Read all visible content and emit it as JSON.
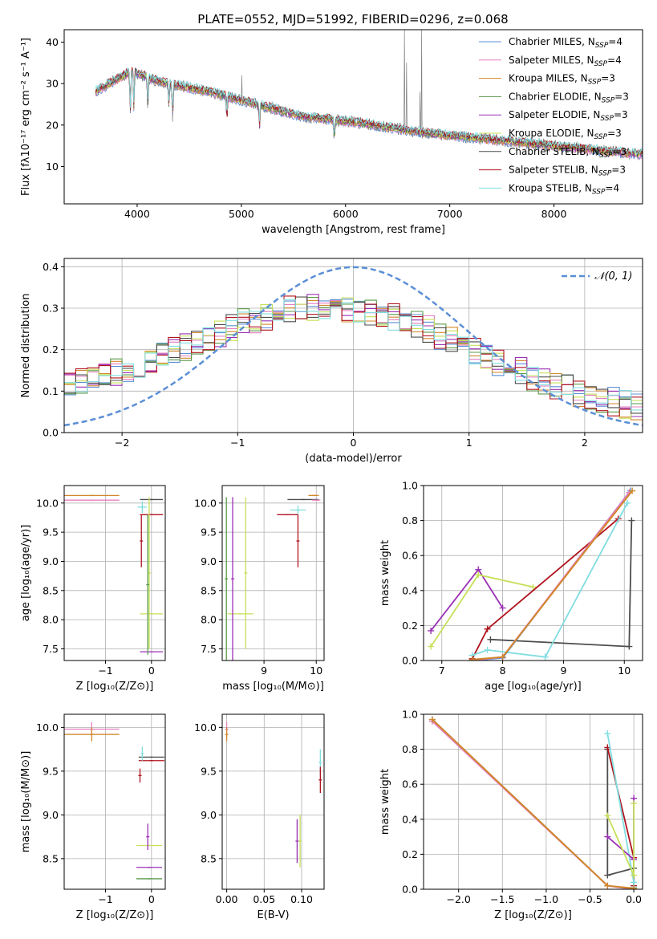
{
  "figure": {
    "title": "PLATE=0552, MJD=51992, FIBERID=0296, z=0.068"
  },
  "colors": {
    "Chabrier MILES": "#5b8fd6",
    "Salpeter MILES": "#e57fc0",
    "Kroupa MILES": "#d2872a",
    "Chabrier ELODIE": "#5a9a4a",
    "Salpeter ELODIE": "#9b30b5",
    "Kroupa ELODIE": "#c6e05a",
    "Chabrier STELIB": "#4d4d4d",
    "Salpeter STELIB": "#b0141e",
    "Kroupa STELIB": "#80dde0",
    "normal": "#5b8fd6",
    "observed": "#808080"
  },
  "chart_data": [
    {
      "id": "spectrum",
      "type": "line",
      "xlabel": "wavelength [Angstrom, rest frame]",
      "ylabel": "Flux [fλ10⁻¹⁷ erg cm⁻² s⁻¹ A⁻¹]",
      "xlim": [
        3300,
        8850
      ],
      "ylim": [
        1,
        43
      ],
      "xticks": [
        "4000",
        "5000",
        "6000",
        "7000",
        "8000"
      ],
      "xtick_values": [
        4000,
        5000,
        6000,
        7000,
        8000
      ],
      "yticks": [
        "10",
        "20",
        "30",
        "40"
      ],
      "ytick_values": [
        10,
        20,
        30,
        40
      ],
      "grid": false,
      "legend": "top-right",
      "continuum": {
        "x": [
          3600,
          3800,
          3950,
          4150,
          4400,
          4700,
          5000,
          5300,
          5600,
          6000,
          6400,
          6800,
          7200,
          7600,
          8000,
          8400,
          8800
        ],
        "y": [
          28,
          31,
          33,
          31,
          29.5,
          28,
          26,
          24,
          22,
          21,
          19.5,
          18,
          17,
          16,
          15,
          14,
          13
        ]
      },
      "absorption_lines": [
        {
          "x": 3934,
          "depth": 10
        },
        {
          "x": 3969,
          "depth": 9
        },
        {
          "x": 4102,
          "depth": 7
        },
        {
          "x": 4305,
          "depth": 5
        },
        {
          "x": 4341,
          "depth": 8
        },
        {
          "x": 4861,
          "depth": 6
        },
        {
          "x": 5175,
          "depth": 5
        },
        {
          "x": 5892,
          "depth": 5
        }
      ],
      "emission_lines": [
        {
          "x": 4861,
          "peak": 27
        },
        {
          "x": 5007,
          "peak": 32
        },
        {
          "x": 6563,
          "peak": 43
        },
        {
          "x": 6583,
          "peak": 35
        },
        {
          "x": 6717,
          "peak": 28
        },
        {
          "x": 6731,
          "peak": 43
        }
      ],
      "series": [
        {
          "name": "Chabrier MILES, N$_{SSP}$=4",
          "label": "Chabrier MILES, N",
          "sub": "SSP",
          "tail": "=4"
        },
        {
          "name": "Salpeter MILES, N$_{SSP}$=4",
          "label": "Salpeter MILES, N",
          "sub": "SSP",
          "tail": "=4"
        },
        {
          "name": "Kroupa MILES, N$_{SSP}$=3",
          "label": "Kroupa MILES, N",
          "sub": "SSP",
          "tail": "=3"
        },
        {
          "name": "Chabrier ELODIE, N$_{SSP}$=3",
          "label": "Chabrier ELODIE, N",
          "sub": "SSP",
          "tail": "=3"
        },
        {
          "name": "Salpeter ELODIE, N$_{SSP}$=3",
          "label": "Salpeter ELODIE, N",
          "sub": "SSP",
          "tail": "=3"
        },
        {
          "name": "Kroupa ELODIE, N$_{SSP}$=3",
          "label": "Kroupa ELODIE, N",
          "sub": "SSP",
          "tail": "=3"
        },
        {
          "name": "Chabrier STELIB, N$_{SSP}$=3",
          "label": "Chabrier STELIB, N",
          "sub": "SSP",
          "tail": "=3"
        },
        {
          "name": "Salpeter STELIB, N$_{SSP}$=3",
          "label": "Salpeter STELIB, N",
          "sub": "SSP",
          "tail": "=3"
        },
        {
          "name": "Kroupa STELIB, N$_{SSP}$=4",
          "label": "Kroupa STELIB, N",
          "sub": "SSP",
          "tail": "=4"
        }
      ]
    },
    {
      "id": "residuals",
      "type": "line",
      "xlabel": "(data-model)/error",
      "ylabel": "Normed distribution",
      "xlim": [
        -2.5,
        2.5
      ],
      "ylim": [
        0,
        0.42
      ],
      "xticks": [
        "−2",
        "−1",
        "0",
        "1",
        "2"
      ],
      "xtick_values": [
        -2,
        -1,
        0,
        1,
        2
      ],
      "yticks": [
        "0.0",
        "0.1",
        "0.2",
        "0.3",
        "0.4"
      ],
      "ytick_values": [
        0,
        0.1,
        0.2,
        0.3,
        0.4
      ],
      "grid": true,
      "legend": "top-right",
      "normal_label": "𝒩(0, 1)",
      "hist_shape": {
        "x": [
          -2.5,
          -2.0,
          -1.5,
          -1.0,
          -0.5,
          0.0,
          0.5,
          1.0,
          1.5,
          2.0,
          2.5
        ],
        "y": [
          0.11,
          0.15,
          0.2,
          0.26,
          0.3,
          0.3,
          0.27,
          0.2,
          0.14,
          0.09,
          0.06
        ]
      }
    },
    {
      "id": "z-age",
      "type": "scatter",
      "xlabel": "Z [log₁₀(Z/Z⊙)]",
      "ylabel": "age  [log₁₀(age/yr)]",
      "xlim": [
        -1.9,
        0.3
      ],
      "ylim": [
        7.3,
        10.3
      ],
      "xticks": [
        "−1",
        "0"
      ],
      "xtick_values": [
        -1,
        0
      ],
      "yticks": [
        "7.5",
        "8.0",
        "8.5",
        "9.0",
        "9.5",
        "10.0"
      ],
      "ytick_values": [
        7.5,
        8,
        8.5,
        9,
        9.5,
        10
      ],
      "grid": true,
      "points": [
        {
          "series": "Salpeter MILES",
          "x": -1.3,
          "y": 10.05,
          "xerr": 0.6,
          "yerr": 0
        },
        {
          "series": "Kroupa MILES",
          "x": -1.3,
          "y": 10.13,
          "xerr": 0.6,
          "yerr": 0
        },
        {
          "series": "Chabrier STELIB",
          "x": 0.0,
          "y": 10.06,
          "xerr": 0.25,
          "yerr": 0
        },
        {
          "series": "Kroupa STELIB",
          "x": -0.2,
          "y": 9.93,
          "xerr": 0.1,
          "yerr": 0.1
        },
        {
          "series": "Salpeter STELIB",
          "x": 0.0,
          "y": 9.8,
          "xerr": 0.25,
          "yerr": 0
        },
        {
          "series": "Salpeter STELIB",
          "x": -0.22,
          "y": 9.35,
          "xerr": 0,
          "yerr": 0.45
        },
        {
          "series": "Kroupa ELODIE",
          "x": 0.0,
          "y": 8.1,
          "xerr": 0.25,
          "yerr": 0
        },
        {
          "series": "Kroupa ELODIE",
          "x": -0.05,
          "y": 8.8,
          "xerr": 0,
          "yerr": 1.3
        },
        {
          "series": "Salpeter ELODIE",
          "x": 0.0,
          "y": 7.45,
          "xerr": 0.25,
          "yerr": 0
        },
        {
          "series": "Chabrier ELODIE",
          "x": -0.08,
          "y": 8.6,
          "xerr": 0,
          "yerr": 1.2
        }
      ]
    },
    {
      "id": "mass-age",
      "type": "scatter",
      "xlabel": "mass [log₁₀(M/M⊙)]",
      "ylabel": "",
      "xlim": [
        8.2,
        10.15
      ],
      "ylim": [
        7.3,
        10.3
      ],
      "xticks": [
        "9",
        "10"
      ],
      "xtick_values": [
        9,
        10
      ],
      "yticks": [
        "7.5",
        "8.0",
        "8.5",
        "9.0",
        "9.5",
        "10.0"
      ],
      "ytick_values": [
        7.5,
        8,
        8.5,
        9,
        9.5,
        10
      ],
      "grid": true,
      "points": [
        {
          "series": "Chabrier STELIB",
          "x": 9.75,
          "y": 10.06,
          "xerr": 0.3,
          "yerr": 0
        },
        {
          "series": "Kroupa MILES",
          "x": 9.95,
          "y": 10.13,
          "xerr": 0.1,
          "yerr": 0
        },
        {
          "series": "Salpeter MILES",
          "x": 10.0,
          "y": 10.05,
          "xerr": 0.08,
          "yerr": 0
        },
        {
          "series": "Kroupa STELIB",
          "x": 9.65,
          "y": 9.88,
          "xerr": 0.15,
          "yerr": 0.08
        },
        {
          "series": "Salpeter STELIB",
          "x": 9.45,
          "y": 9.8,
          "xerr": 0.2,
          "yerr": 0
        },
        {
          "series": "Salpeter STELIB",
          "x": 9.65,
          "y": 9.35,
          "xerr": 0,
          "yerr": 0.45
        },
        {
          "series": "Kroupa ELODIE",
          "x": 8.55,
          "y": 8.1,
          "xerr": 0.25,
          "yerr": 0
        },
        {
          "series": "Kroupa ELODIE",
          "x": 8.65,
          "y": 8.8,
          "xerr": 0,
          "yerr": 1.3
        },
        {
          "series": "Salpeter ELODIE",
          "x": 8.4,
          "y": 8.7,
          "xerr": 0,
          "yerr": 1.4
        },
        {
          "series": "Chabrier ELODIE",
          "x": 8.28,
          "y": 8.7,
          "xerr": 0,
          "yerr": 1.4
        }
      ]
    },
    {
      "id": "age-weight",
      "type": "line",
      "xlabel": "age  [log₁₀(age/yr)]",
      "ylabel": "mass weight",
      "xlim": [
        6.7,
        10.3
      ],
      "ylim": [
        0,
        1
      ],
      "xticks": [
        "7",
        "8",
        "9",
        "10"
      ],
      "xtick_values": [
        7,
        8,
        9,
        10
      ],
      "yticks": [
        "0.0",
        "0.2",
        "0.4",
        "0.6",
        "0.8",
        "1.0"
      ],
      "ytick_values": [
        0,
        0.2,
        0.4,
        0.6,
        0.8,
        1
      ],
      "grid": true,
      "series": [
        {
          "series": "Salpeter ELODIE",
          "x": [
            6.82,
            7.6,
            8.0
          ],
          "y": [
            0.17,
            0.52,
            0.3
          ]
        },
        {
          "series": "Kroupa ELODIE",
          "x": [
            6.82,
            7.6,
            8.5
          ],
          "y": [
            0.08,
            0.49,
            0.42
          ]
        },
        {
          "series": "Salpeter STELIB",
          "x": [
            7.5,
            7.75,
            9.9
          ],
          "y": [
            0.01,
            0.18,
            0.81
          ]
        },
        {
          "series": "Chabrier STELIB",
          "x": [
            7.8,
            10.08,
            10.12
          ],
          "y": [
            0.12,
            0.08,
            0.8
          ]
        },
        {
          "series": "Kroupa STELIB",
          "x": [
            7.5,
            7.75,
            8.7,
            10.05
          ],
          "y": [
            0.03,
            0.06,
            0.02,
            0.9
          ]
        },
        {
          "series": "Chabrier MILES",
          "x": [
            7.5,
            8.0,
            10.1
          ],
          "y": [
            0.0,
            0.015,
            0.97
          ]
        },
        {
          "series": "Salpeter MILES",
          "x": [
            7.5,
            8.0,
            10.08
          ],
          "y": [
            0.0,
            0.02,
            0.96
          ]
        },
        {
          "series": "Kroupa MILES",
          "x": [
            7.5,
            8.0,
            10.13
          ],
          "y": [
            0.005,
            0.02,
            0.97
          ]
        }
      ]
    },
    {
      "id": "z-mass",
      "type": "scatter",
      "xlabel": "Z [log₁₀(Z/Z⊙)]",
      "ylabel": "mass [log₁₀(M/M⊙)]",
      "xlim": [
        -1.9,
        0.3
      ],
      "ylim": [
        8.15,
        10.15
      ],
      "xticks": [
        "−1",
        "0"
      ],
      "xtick_values": [
        -1,
        0
      ],
      "yticks": [
        "8.5",
        "9.0",
        "9.5",
        "10.0"
      ],
      "ytick_values": [
        8.5,
        9,
        9.5,
        10
      ],
      "grid": true,
      "points": [
        {
          "series": "Salpeter MILES",
          "x": -1.3,
          "y": 9.98,
          "xerr": 0.6,
          "yerr": 0.08
        },
        {
          "series": "Kroupa MILES",
          "x": -1.3,
          "y": 9.92,
          "xerr": 0.6,
          "yerr": 0.08
        },
        {
          "series": "Chabrier STELIB",
          "x": 0.0,
          "y": 9.66,
          "xerr": 0.28,
          "yerr": 0
        },
        {
          "series": "Salpeter STELIB",
          "x": 0.0,
          "y": 9.62,
          "xerr": 0.28,
          "yerr": 0
        },
        {
          "series": "Kroupa STELIB",
          "x": -0.2,
          "y": 9.7,
          "xerr": 0,
          "yerr": 0.08
        },
        {
          "series": "Salpeter STELIB",
          "x": -0.25,
          "y": 9.45,
          "xerr": 0,
          "yerr": 0.08
        },
        {
          "series": "Kroupa ELODIE",
          "x": -0.05,
          "y": 8.65,
          "xerr": 0.28,
          "yerr": 0
        },
        {
          "series": "Salpeter ELODIE",
          "x": -0.05,
          "y": 8.4,
          "xerr": 0.28,
          "yerr": 0
        },
        {
          "series": "Chabrier ELODIE",
          "x": -0.05,
          "y": 8.27,
          "xerr": 0.28,
          "yerr": 0
        },
        {
          "series": "Salpeter ELODIE",
          "x": -0.08,
          "y": 8.75,
          "xerr": 0,
          "yerr": 0.15
        }
      ]
    },
    {
      "id": "ebv-mass",
      "type": "scatter",
      "xlabel": "E(B-V)",
      "ylabel": "",
      "xlim": [
        -0.006,
        0.13
      ],
      "ylim": [
        8.15,
        10.15
      ],
      "xticks": [
        "0.00",
        "0.05",
        "0.10"
      ],
      "xtick_values": [
        0,
        0.05,
        0.1
      ],
      "yticks": [
        "8.5",
        "9.0",
        "9.5",
        "10.0"
      ],
      "ytick_values": [
        8.5,
        9,
        9.5,
        10
      ],
      "grid": true,
      "points": [
        {
          "series": "Salpeter MILES",
          "x": 0.0,
          "y": 9.98,
          "xerr": 0,
          "yerr": 0.08
        },
        {
          "series": "Kroupa MILES",
          "x": 0.0,
          "y": 9.92,
          "xerr": 0,
          "yerr": 0.08
        },
        {
          "series": "Kroupa STELIB",
          "x": 0.125,
          "y": 9.6,
          "xerr": 0,
          "yerr": 0.15
        },
        {
          "series": "Salpeter STELIB",
          "x": 0.125,
          "y": 9.4,
          "xerr": 0,
          "yerr": 0.15
        },
        {
          "series": "Salpeter ELODIE",
          "x": 0.094,
          "y": 8.7,
          "xerr": 0,
          "yerr": 0.25
        },
        {
          "series": "Kroupa ELODIE",
          "x": 0.098,
          "y": 8.7,
          "xerr": 0,
          "yerr": 0.3
        }
      ]
    },
    {
      "id": "z-weight",
      "type": "line",
      "xlabel": "Z [log₁₀(Z/Z⊙)]",
      "ylabel": "mass weight",
      "xlim": [
        -2.4,
        0.1
      ],
      "ylim": [
        0,
        1
      ],
      "xticks": [
        "−2.0",
        "−1.5",
        "−1.0",
        "−0.5",
        "0.0"
      ],
      "xtick_values": [
        -2,
        -1.5,
        -1,
        -0.5,
        0
      ],
      "yticks": [
        "0.0",
        "0.2",
        "0.4",
        "0.6",
        "0.8",
        "1.0"
      ],
      "ytick_values": [
        0,
        0.2,
        0.4,
        0.6,
        0.8,
        1
      ],
      "grid": true,
      "series": [
        {
          "series": "Chabrier STELIB",
          "x": [
            -0.3,
            -0.3,
            0.0,
            0.0
          ],
          "y": [
            0.8,
            0.08,
            0.12,
            0.0
          ]
        },
        {
          "series": "Salpeter STELIB",
          "x": [
            -0.3,
            0.0,
            0.0
          ],
          "y": [
            0.81,
            0.18,
            0.02
          ]
        },
        {
          "series": "Kroupa STELIB",
          "x": [
            -0.3,
            0.0,
            0.0
          ],
          "y": [
            0.89,
            0.04,
            0.01
          ]
        },
        {
          "series": "Salpeter ELODIE",
          "x": [
            -0.3,
            0.0,
            0.0
          ],
          "y": [
            0.3,
            0.17,
            0.52
          ]
        },
        {
          "series": "Kroupa ELODIE",
          "x": [
            -0.3,
            0.0,
            0.0
          ],
          "y": [
            0.42,
            0.08,
            0.49
          ]
        },
        {
          "series": "Chabrier MILES",
          "x": [
            -2.3,
            -0.3,
            0.0
          ],
          "y": [
            0.97,
            0.02,
            0.0
          ]
        },
        {
          "series": "Salpeter MILES",
          "x": [
            -2.3,
            -0.3,
            0.0
          ],
          "y": [
            0.96,
            0.02,
            0.0
          ]
        },
        {
          "series": "Kroupa MILES",
          "x": [
            -2.3,
            -0.3,
            0.0
          ],
          "y": [
            0.97,
            0.02,
            0.005
          ]
        }
      ]
    }
  ]
}
